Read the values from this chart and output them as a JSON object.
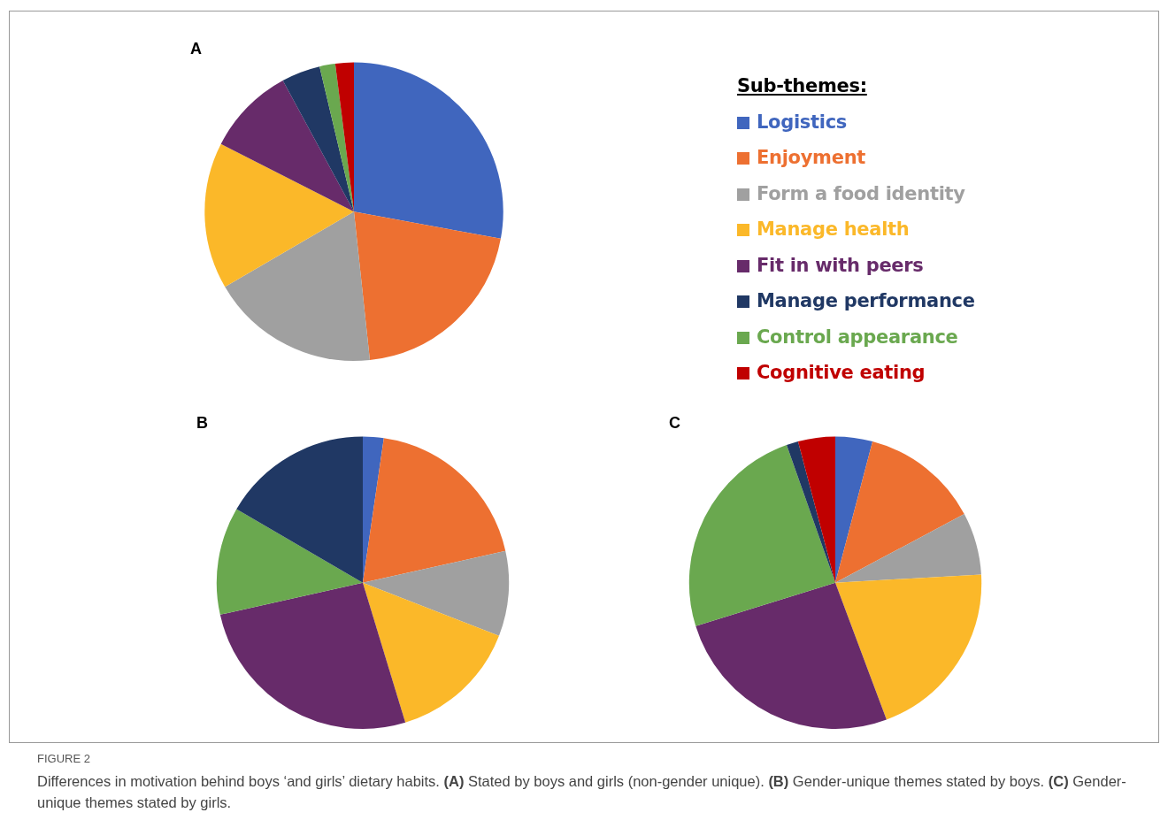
{
  "chart_data": [
    {
      "type": "pie",
      "title": "A",
      "legend": "right",
      "legend_title": "Sub-themes:",
      "categories": [
        "Logistics",
        "Enjoyment",
        "Form a food identity",
        "Manage health",
        "Fit in with peers",
        "Manage performance",
        "Control appearance",
        "Cognitive eating"
      ],
      "values": [
        27.9,
        20.4,
        18.3,
        15.9,
        9.6,
        4.2,
        1.7,
        2.0
      ],
      "colors": [
        "#4066be",
        "#ed7031",
        "#a0a0a0",
        "#fbb829",
        "#672b6a",
        "#203864",
        "#6aa84f",
        "#c00000"
      ]
    },
    {
      "type": "pie",
      "title": "B",
      "legend": false,
      "categories": [
        null,
        null,
        null,
        null,
        null,
        null,
        null
      ],
      "values": [
        2.3,
        19.2,
        9.4,
        14.4,
        26.2,
        11.9,
        16.6
      ],
      "colors": [
        "#4066be",
        "#ed7031",
        "#a0a0a0",
        "#fbb829",
        "#672b6a",
        "#6aa84f",
        "#203864"
      ]
    },
    {
      "type": "pie",
      "title": "C",
      "legend": false,
      "categories": [
        null,
        null,
        null,
        null,
        null,
        null,
        null,
        null
      ],
      "values": [
        4.1,
        13.1,
        6.9,
        20.2,
        25.9,
        24.4,
        1.3,
        4.1
      ],
      "colors": [
        "#4066be",
        "#ed7031",
        "#a0a0a0",
        "#fbb829",
        "#672b6a",
        "#6aa84f",
        "#203864",
        "#c00000"
      ],
      "annotations": [
        "FIGURE 2",
        "Differences in motivation behind boys ‘and girls’ dietary habits. (A) Stated by boys and girls (non-gender unique). (B) Gender-unique themes stated by boys. (C) Gender-unique themes stated by girls."
      ]
    }
  ]
}
